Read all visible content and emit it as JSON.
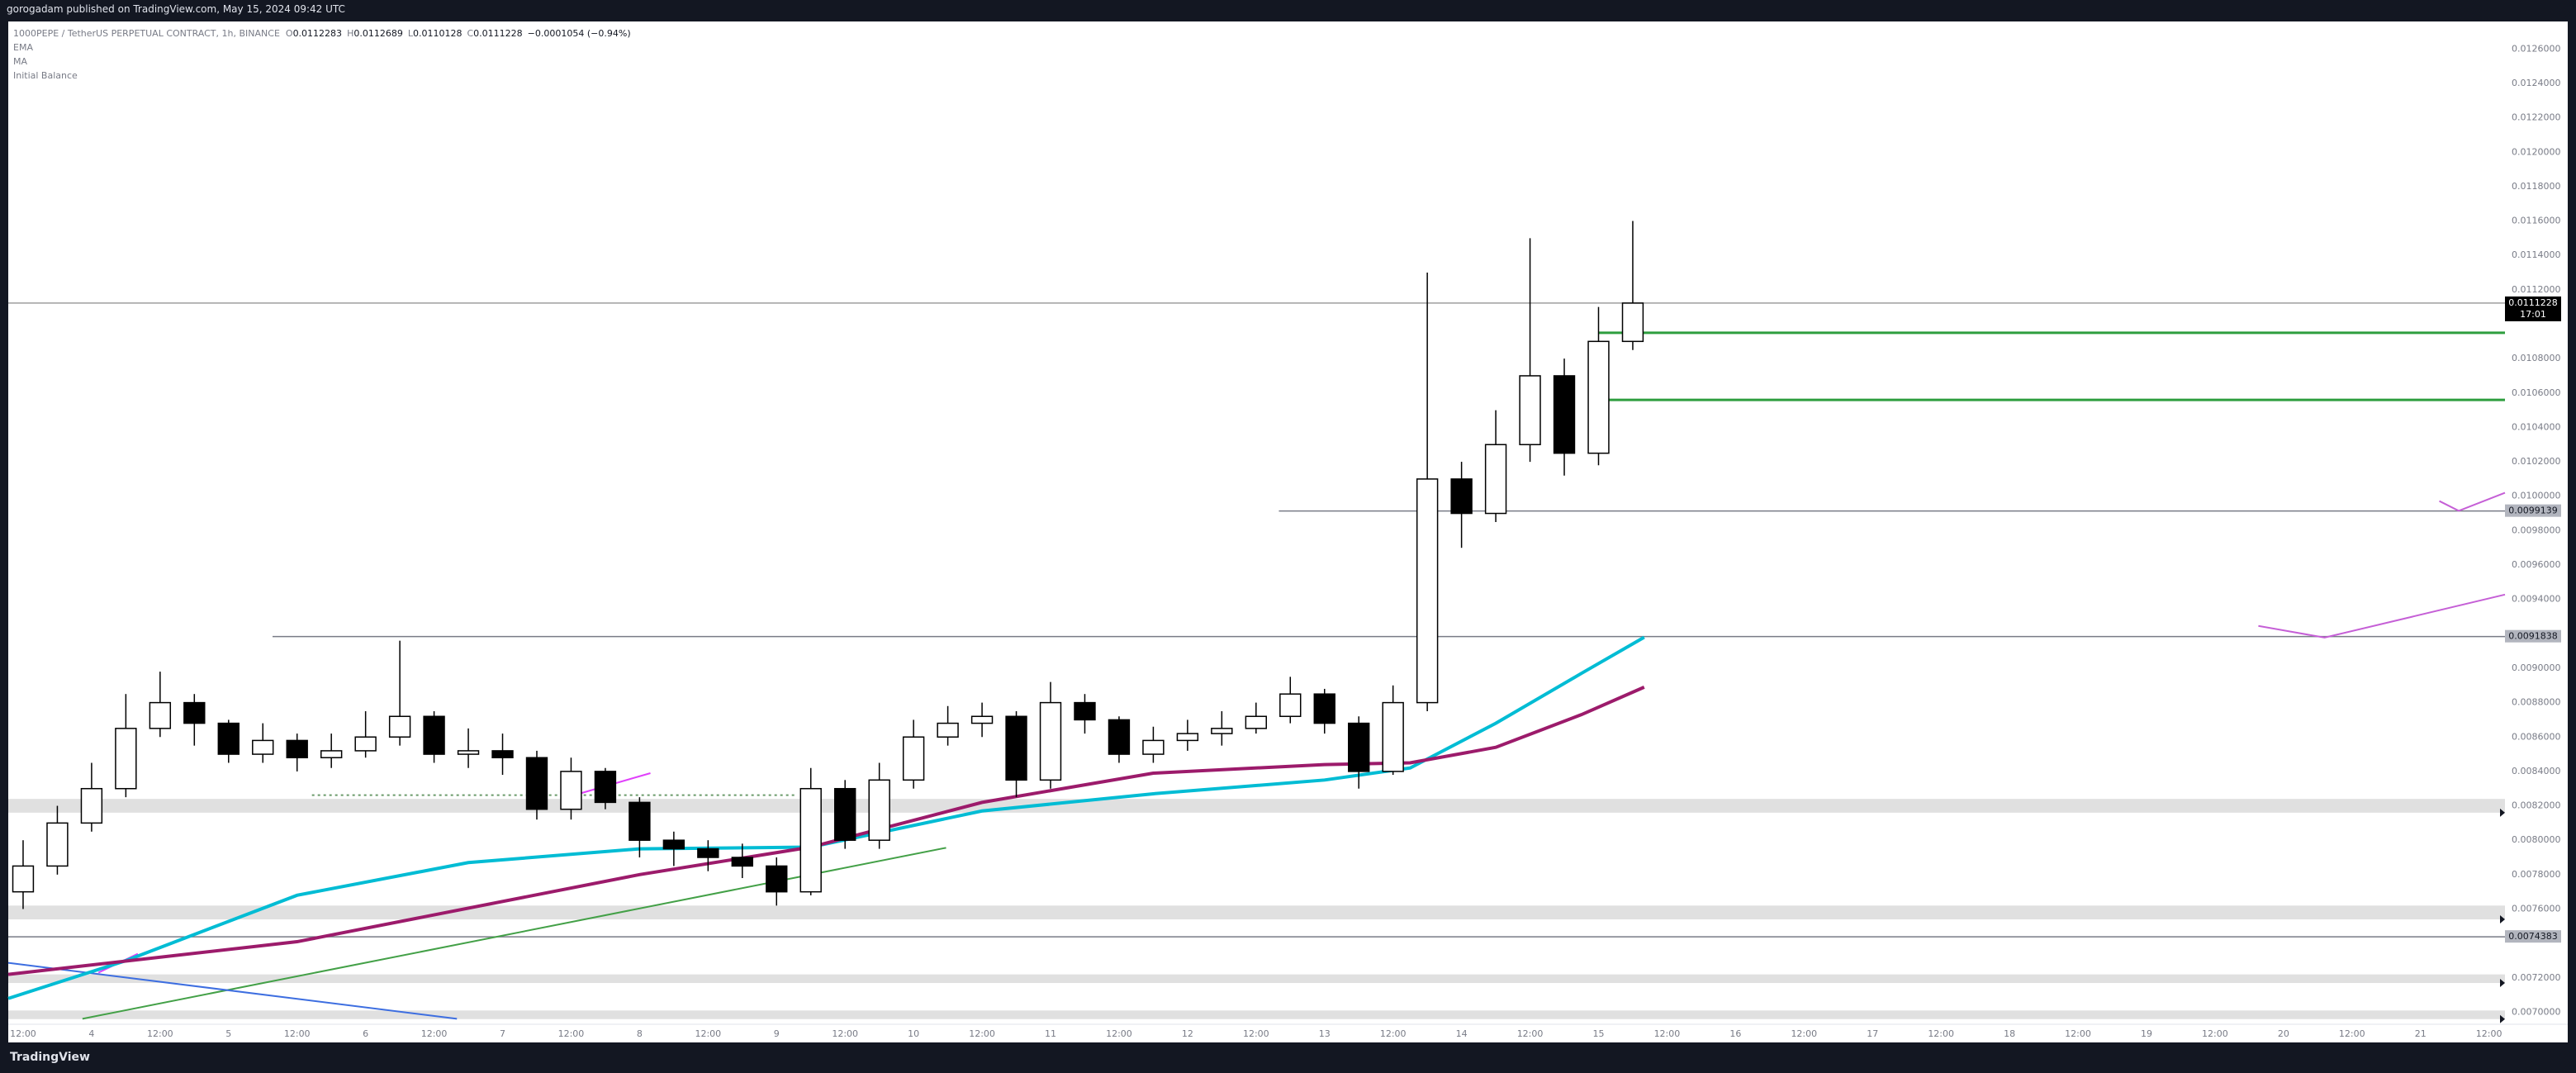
{
  "header": "gorogadam published on TradingView.com, May 15, 2024 09:42 UTC",
  "footer": "TradingView",
  "legend": {
    "symbol": "1000PEPE / TetherUS PERPETUAL CONTRACT, 1h, BINANCE",
    "ohlc": [
      {
        "label": "O",
        "value": "0.0112283"
      },
      {
        "label": "H",
        "value": "0.0112689"
      },
      {
        "label": "L",
        "value": "0.0110128"
      },
      {
        "label": "C",
        "value": "0.0111228"
      }
    ],
    "change": "−0.0001054 (−0.94%)",
    "extra": "Initial Balance"
  },
  "chart_data": {
    "type": "candlestick",
    "xlim": [
      9.4,
      446.8
    ],
    "ylim": [
      0.00693,
      0.01276
    ],
    "xticks": [
      {
        "value": 12,
        "label": "12:00"
      },
      {
        "value": 24,
        "label": "4"
      },
      {
        "value": 36,
        "label": "12:00"
      },
      {
        "value": 48,
        "label": "5"
      },
      {
        "value": 60,
        "label": "12:00"
      },
      {
        "value": 72,
        "label": "6"
      },
      {
        "value": 84,
        "label": "12:00"
      },
      {
        "value": 96,
        "label": "7"
      },
      {
        "value": 108,
        "label": "12:00"
      },
      {
        "value": 120,
        "label": "8"
      },
      {
        "value": 132,
        "label": "12:00"
      },
      {
        "value": 144,
        "label": "9"
      },
      {
        "value": 156,
        "label": "12:00"
      },
      {
        "value": 168,
        "label": "10"
      },
      {
        "value": 180,
        "label": "12:00"
      },
      {
        "value": 192,
        "label": "11"
      },
      {
        "value": 204,
        "label": "12:00"
      },
      {
        "value": 216,
        "label": "12"
      },
      {
        "value": 228,
        "label": "12:00"
      },
      {
        "value": 240,
        "label": "13"
      },
      {
        "value": 252,
        "label": "12:00"
      },
      {
        "value": 264,
        "label": "14"
      },
      {
        "value": 276,
        "label": "12:00"
      },
      {
        "value": 288,
        "label": "15"
      },
      {
        "value": 300,
        "label": "12:00"
      },
      {
        "value": 312,
        "label": "16"
      },
      {
        "value": 324,
        "label": "12:00"
      },
      {
        "value": 336,
        "label": "17"
      },
      {
        "value": 348,
        "label": "12:00"
      },
      {
        "value": 360,
        "label": "18"
      },
      {
        "value": 372,
        "label": "12:00"
      },
      {
        "value": 384,
        "label": "19"
      },
      {
        "value": 396,
        "label": "12:00"
      },
      {
        "value": 408,
        "label": "20"
      },
      {
        "value": 420,
        "label": "12:00"
      },
      {
        "value": 432,
        "label": "21"
      },
      {
        "value": 444,
        "label": "12:00"
      }
    ],
    "yticks": [
      {
        "value": 0.0126,
        "label": "0.0126000"
      },
      {
        "value": 0.0124,
        "label": "0.0124000"
      },
      {
        "value": 0.0122,
        "label": "0.0122000"
      },
      {
        "value": 0.012,
        "label": "0.0120000"
      },
      {
        "value": 0.0118,
        "label": "0.0118000"
      },
      {
        "value": 0.0116,
        "label": "0.0116000"
      },
      {
        "value": 0.0114,
        "label": "0.0114000"
      },
      {
        "value": 0.0112,
        "label": "0.0112000"
      },
      {
        "value": 0.0108,
        "label": "0.0108000"
      },
      {
        "value": 0.0106,
        "label": "0.0106000"
      },
      {
        "value": 0.0104,
        "label": "0.0104000"
      },
      {
        "value": 0.0102,
        "label": "0.0102000"
      },
      {
        "value": 0.01,
        "label": "0.0100000"
      },
      {
        "value": 0.0098,
        "label": "0.0098000"
      },
      {
        "value": 0.0096,
        "label": "0.0096000"
      },
      {
        "value": 0.0094,
        "label": "0.0094000"
      },
      {
        "value": 0.009,
        "label": "0.0090000"
      },
      {
        "value": 0.0088,
        "label": "0.0088000"
      },
      {
        "value": 0.0086,
        "label": "0.0086000"
      },
      {
        "value": 0.0084,
        "label": "0.0084000"
      },
      {
        "value": 0.0082,
        "label": "0.0082000"
      },
      {
        "value": 0.008,
        "label": "0.0080000"
      },
      {
        "value": 0.0078,
        "label": "0.0078000"
      },
      {
        "value": 0.0076,
        "label": "0.0076000"
      },
      {
        "value": 0.0072,
        "label": "0.0072000"
      },
      {
        "value": 0.007,
        "label": "0.0070000"
      }
    ],
    "x": [
      12,
      18,
      24,
      30,
      36,
      42,
      48,
      54,
      60,
      66,
      72,
      78,
      84,
      90,
      96,
      102,
      108,
      114,
      120,
      126,
      132,
      138,
      144,
      150,
      156,
      162,
      168,
      174,
      180,
      186,
      192,
      198,
      204,
      210,
      216,
      222,
      228,
      234,
      240,
      246,
      252,
      258,
      264,
      270,
      276,
      282,
      288,
      294
    ],
    "open": [
      0.0077,
      0.00785,
      0.0081,
      0.0083,
      0.00865,
      0.0088,
      0.00868,
      0.0085,
      0.00858,
      0.00848,
      0.00852,
      0.0086,
      0.00872,
      0.0085,
      0.00852,
      0.00848,
      0.00818,
      0.0084,
      0.00822,
      0.008,
      0.00795,
      0.0079,
      0.00785,
      0.0077,
      0.0083,
      0.008,
      0.00835,
      0.0086,
      0.00868,
      0.00872,
      0.00835,
      0.0088,
      0.0087,
      0.0085,
      0.00858,
      0.00862,
      0.00865,
      0.00872,
      0.00885,
      0.00868,
      0.0084,
      0.0088,
      0.0101,
      0.0099,
      0.0103,
      0.0107,
      0.01025,
      0.0109
    ],
    "high": [
      0.008,
      0.0082,
      0.00845,
      0.00885,
      0.00898,
      0.00885,
      0.0087,
      0.00868,
      0.00862,
      0.00862,
      0.00875,
      0.00916,
      0.00875,
      0.00865,
      0.00862,
      0.00852,
      0.00848,
      0.00842,
      0.00825,
      0.00805,
      0.008,
      0.00798,
      0.0079,
      0.00842,
      0.00835,
      0.00845,
      0.0087,
      0.00878,
      0.0088,
      0.00875,
      0.00892,
      0.00885,
      0.00872,
      0.00866,
      0.0087,
      0.00875,
      0.0088,
      0.00895,
      0.00888,
      0.00872,
      0.0089,
      0.0113,
      0.0102,
      0.0105,
      0.0115,
      0.0108,
      0.0111,
      0.0116
    ],
    "low": [
      0.0076,
      0.0078,
      0.00805,
      0.00825,
      0.0086,
      0.00855,
      0.00845,
      0.00845,
      0.0084,
      0.00842,
      0.00848,
      0.00855,
      0.00845,
      0.00842,
      0.00838,
      0.00812,
      0.00812,
      0.00818,
      0.0079,
      0.00785,
      0.00782,
      0.00778,
      0.00762,
      0.00768,
      0.00795,
      0.00795,
      0.0083,
      0.00855,
      0.0086,
      0.00825,
      0.0083,
      0.00862,
      0.00845,
      0.00845,
      0.00852,
      0.00855,
      0.00862,
      0.00868,
      0.00862,
      0.0083,
      0.00838,
      0.00875,
      0.0097,
      0.00985,
      0.0102,
      0.01012,
      0.01018,
      0.01085
    ],
    "close": [
      0.00785,
      0.0081,
      0.0083,
      0.00865,
      0.0088,
      0.00868,
      0.0085,
      0.00858,
      0.00848,
      0.00852,
      0.0086,
      0.00872,
      0.0085,
      0.00852,
      0.00848,
      0.00818,
      0.0084,
      0.00822,
      0.008,
      0.00795,
      0.0079,
      0.00785,
      0.0077,
      0.0083,
      0.008,
      0.00835,
      0.0086,
      0.00868,
      0.00872,
      0.00835,
      0.0088,
      0.0087,
      0.0085,
      0.00858,
      0.00862,
      0.00865,
      0.00872,
      0.00885,
      0.00868,
      0.0084,
      0.0088,
      0.0101,
      0.0099,
      0.0103,
      0.0107,
      0.01025,
      0.0109,
      0.0111228
    ],
    "series": [
      {
        "name": "EMA",
        "color": "#00bcd4",
        "x": [
          9.4,
          30,
          60,
          90,
          120,
          150,
          180,
          210,
          240,
          255,
          270,
          285,
          296
        ],
        "values": [
          0.00708,
          0.0073,
          0.00768,
          0.00787,
          0.00795,
          0.00796,
          0.00817,
          0.00827,
          0.00835,
          0.00842,
          0.00868,
          0.00897,
          0.00918
        ]
      },
      {
        "name": "MA",
        "color": "#9c1b6b",
        "x": [
          9.4,
          60,
          120,
          150,
          180,
          210,
          240,
          255,
          270,
          285,
          296
        ],
        "values": [
          0.00722,
          0.00741,
          0.0078,
          0.00796,
          0.00822,
          0.00839,
          0.00844,
          0.00845,
          0.00854,
          0.00873,
          0.00889
        ]
      }
    ],
    "hlines": [
      {
        "value": 0.0111228,
        "color": "#9e9e9e",
        "label": true,
        "countdown": "17:01",
        "box": "#000000"
      },
      {
        "value": 0.01095,
        "color": "#2e9e3e",
        "from": 288
      },
      {
        "value": 0.01056,
        "color": "#2e9e3e",
        "from": 287.5
      },
      {
        "value": 0.0099139,
        "color": "#787b86",
        "from": 232,
        "label": true,
        "box": "#b2b5be"
      },
      {
        "value": 0.0091838,
        "color": "#787b86",
        "from": 55.7,
        "label": true,
        "box": "#b2b5be"
      },
      {
        "value": 0.0074383,
        "color": "#787b86",
        "label": true,
        "box": "#b2b5be"
      }
    ],
    "zones": [
      [
        0.00816,
        0.00824
      ],
      [
        0.00754,
        0.00762
      ],
      [
        0.00717,
        0.00722
      ],
      [
        0.00696,
        0.00701
      ]
    ],
    "trendlines": [
      {
        "color": "#43a047",
        "x": [
          22.4,
          173.7
        ],
        "values": [
          0.006962,
          0.007956
        ]
      },
      {
        "color": "#3d6ee0",
        "x": [
          9.4,
          88
        ],
        "values": [
          0.007287,
          0.006962
        ]
      },
      {
        "color": "#e040fb",
        "x": [
          25.2,
          32.1
        ],
        "values": [
          0.00723,
          0.00734
        ]
      },
      {
        "color": "#e040fb",
        "x": [
          107.3,
          121.9
        ],
        "values": [
          0.00825,
          0.00839
        ]
      },
      {
        "color": "#c55fd6",
        "x": [
          403.6,
          415.2,
          446.8
        ],
        "values": [
          0.009246,
          0.009178,
          0.009428
        ]
      },
      {
        "color": "#c55fd6",
        "x": [
          435.3,
          438.7,
          446.8
        ],
        "values": [
          0.009972,
          0.009915,
          0.01002
        ]
      },
      {
        "color": "#6a9a6a",
        "x": [
          62.6,
          147.5
        ],
        "values": [
          0.008262,
          0.008262
        ],
        "dashed": true
      }
    ],
    "colors": {
      "up": "#ffffff",
      "down": "#000000",
      "border": "#000000"
    }
  }
}
